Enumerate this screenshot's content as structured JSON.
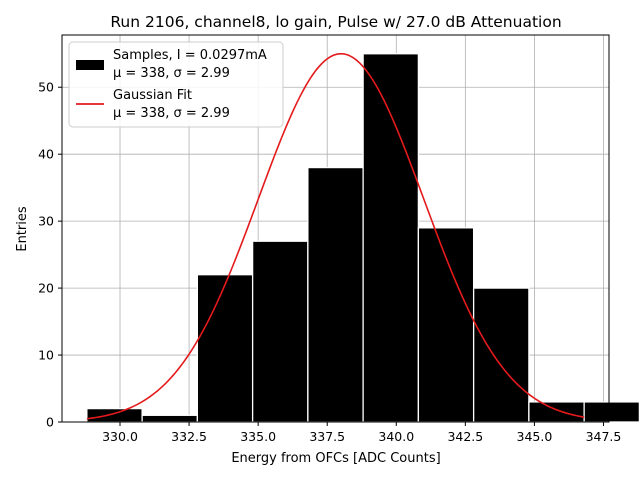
{
  "chart_data": {
    "type": "bar",
    "title": "Run 2106, channel8, lo gain, Pulse w/ 27.0 dB Attenuation",
    "xlabel": "Energy from OFCs [ADC Counts]",
    "ylabel": "Entries",
    "xlim": [
      327.9,
      347.7
    ],
    "ylim": [
      0,
      57.8
    ],
    "xticks": [
      330.0,
      332.5,
      335.0,
      337.5,
      340.0,
      342.5,
      345.0,
      347.5
    ],
    "xtick_labels": [
      "330.0",
      "332.5",
      "335.0",
      "337.5",
      "340.0",
      "342.5",
      "345.0",
      "347.5"
    ],
    "yticks": [
      0,
      10,
      20,
      30,
      40,
      50
    ],
    "ytick_labels": [
      "0",
      "10",
      "20",
      "30",
      "40",
      "50"
    ],
    "grid": true,
    "legend_position": "top-left",
    "series": [
      {
        "name": "Samples, I = 0.0297mA",
        "name_line2": "μ = 338, σ = 2.99",
        "kind": "histogram",
        "color": "#000000",
        "edgecolor": "#ffffff",
        "bins": [
          {
            "x0": 328.8,
            "x1": 330.8,
            "count": 2
          },
          {
            "x0": 330.8,
            "x1": 332.8,
            "count": 1
          },
          {
            "x0": 332.8,
            "x1": 334.8,
            "count": 22
          },
          {
            "x0": 334.8,
            "x1": 336.8,
            "count": 27
          },
          {
            "x0": 336.8,
            "x1": 338.8,
            "count": 38
          },
          {
            "x0": 338.8,
            "x1": 340.8,
            "count": 55
          },
          {
            "x0": 340.8,
            "x1": 342.8,
            "count": 29
          },
          {
            "x0": 342.8,
            "x1": 344.8,
            "count": 20
          },
          {
            "x0": 344.8,
            "x1": 346.8,
            "count": 3
          },
          {
            "x0": 346.8,
            "x1": 348.8,
            "count": 3
          }
        ]
      },
      {
        "name": "Gaussian Fit",
        "name_line2": "μ = 338, σ = 2.99",
        "kind": "line",
        "color": "#e41a1c",
        "mu": 338.0,
        "sigma": 2.99,
        "amplitude": 55,
        "x_range": [
          328.8,
          346.8
        ]
      }
    ]
  }
}
